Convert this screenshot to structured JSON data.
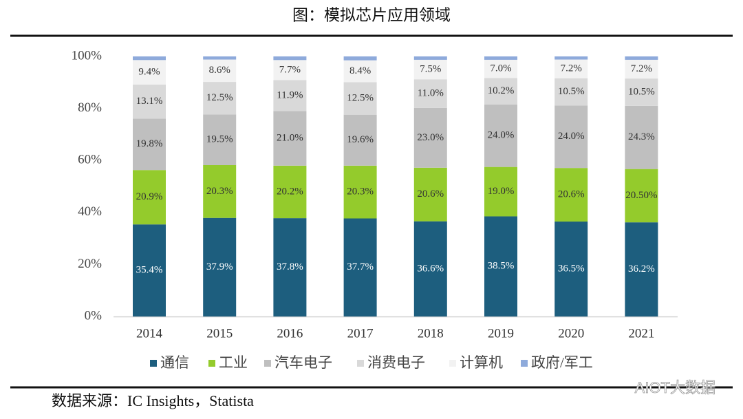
{
  "chart_data": {
    "type": "stacked_bar",
    "title": "图：模拟芯片应用领域",
    "source": "数据来源：IC Insights，Statista",
    "watermark": "AIOT大数据",
    "categories": [
      "2014",
      "2015",
      "2016",
      "2017",
      "2018",
      "2019",
      "2020",
      "2021"
    ],
    "ylim": [
      0,
      100
    ],
    "yticks": [
      {
        "value": 0,
        "label": "0%"
      },
      {
        "value": 20,
        "label": "20%"
      },
      {
        "value": 40,
        "label": "40%"
      },
      {
        "value": 60,
        "label": "60%"
      },
      {
        "value": 80,
        "label": "80%"
      },
      {
        "value": 100,
        "label": "100%"
      }
    ],
    "legend": "bottom",
    "series": [
      {
        "name": "通信",
        "color": "#1d5e7e",
        "values": [
          35.4,
          37.9,
          37.8,
          37.7,
          36.6,
          38.5,
          36.5,
          36.2
        ],
        "value_labels": [
          "35.4%",
          "37.9%",
          "37.8%",
          "37.7%",
          "36.6%",
          "38.5%",
          "36.5%",
          "36.2%"
        ]
      },
      {
        "name": "工业",
        "color": "#94cb2c",
        "values": [
          20.9,
          20.3,
          20.2,
          20.3,
          20.6,
          19.0,
          20.6,
          20.5
        ],
        "value_labels": [
          "20.9%",
          "20.3%",
          "20.2%",
          "20.3%",
          "20.6%",
          "19.0%",
          "20.6%",
          "20.50%"
        ]
      },
      {
        "name": "汽车电子",
        "color": "#bfbfbf",
        "values": [
          19.8,
          19.5,
          21.0,
          19.6,
          23.0,
          24.0,
          24.0,
          24.3
        ],
        "value_labels": [
          "19.8%",
          "19.5%",
          "21.0%",
          "19.6%",
          "23.0%",
          "24.0%",
          "24.0%",
          "24.3%"
        ]
      },
      {
        "name": "消费电子",
        "color": "#d9d9d9",
        "values": [
          13.1,
          12.5,
          11.9,
          12.5,
          11.0,
          10.2,
          10.5,
          10.5
        ],
        "value_labels": [
          "13.1%",
          "12.5%",
          "11.9%",
          "12.5%",
          "11.0%",
          "10.2%",
          "10.5%",
          "10.5%"
        ]
      },
      {
        "name": "计算机",
        "color": "#f2f2f2",
        "values": [
          9.4,
          8.6,
          7.7,
          8.4,
          7.5,
          7.0,
          7.2,
          7.2
        ],
        "value_labels": [
          "9.4%",
          "8.6%",
          "7.7%",
          "8.4%",
          "7.5%",
          "7.0%",
          "7.2%",
          "7.2%"
        ]
      },
      {
        "name": "政府/军工",
        "color": "#8eaadb",
        "values": [
          1.4,
          1.2,
          1.4,
          1.5,
          1.3,
          1.3,
          1.2,
          1.3
        ]
      }
    ]
  }
}
